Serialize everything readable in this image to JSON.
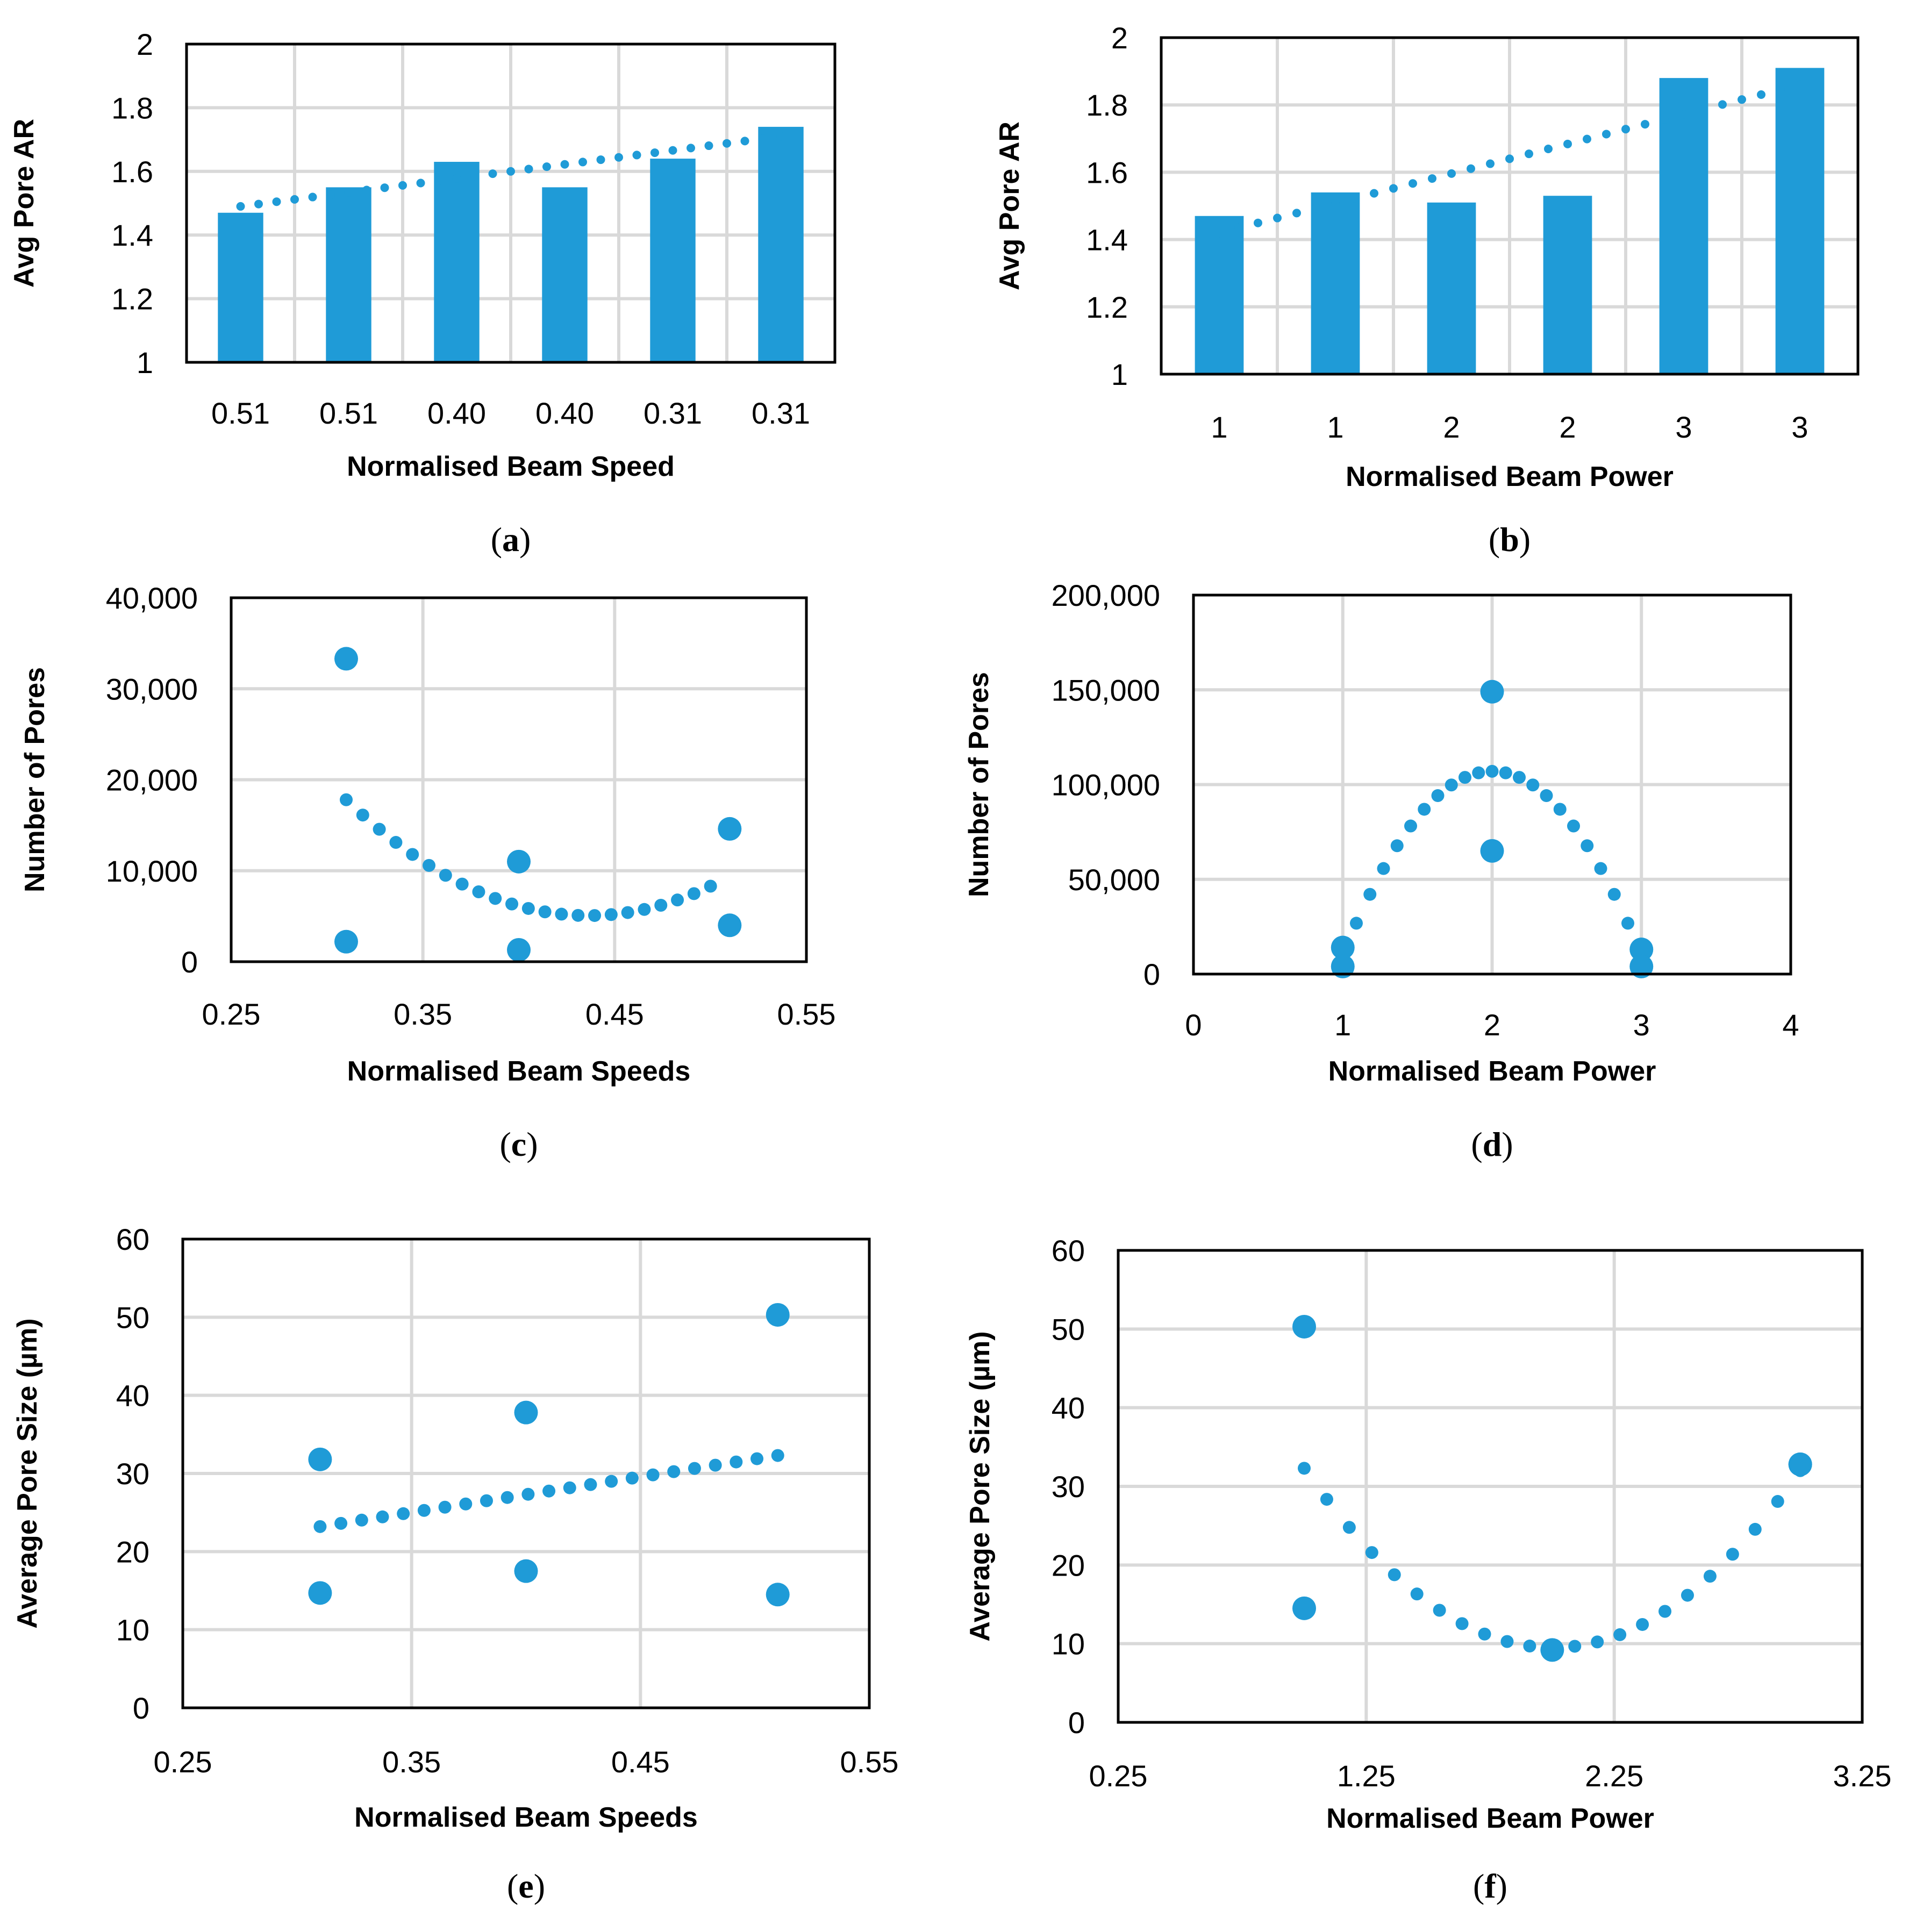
{
  "colors": {
    "series": "#1f9bd7",
    "grid": "#d9d9d9",
    "axis": "#000000"
  },
  "chart_data": [
    {
      "id": "a",
      "type": "bar",
      "panel_label": "a",
      "xlabel": "Normalised Beam Speed",
      "ylabel": "Avg Pore AR",
      "categories": [
        "0.51",
        "0.51",
        "0.40",
        "0.40",
        "0.31",
        "0.31"
      ],
      "values": [
        1.47,
        1.55,
        1.63,
        1.55,
        1.64,
        1.74
      ],
      "ylim": [
        1,
        2
      ],
      "yticks": [
        "1",
        "1.2",
        "1.4",
        "1.6",
        "1.8",
        "2"
      ],
      "trendline": {
        "type": "linear",
        "start": 1.49,
        "end": 1.71
      },
      "grid": true
    },
    {
      "id": "b",
      "type": "bar",
      "panel_label": "b",
      "xlabel": "Normalised Beam Power",
      "ylabel": "Avg Pore AR",
      "categories": [
        "1",
        "1",
        "2",
        "2",
        "3",
        "3"
      ],
      "values": [
        1.47,
        1.54,
        1.51,
        1.53,
        1.88,
        1.91
      ],
      "ylim": [
        1,
        2
      ],
      "yticks": [
        "1",
        "1.2",
        "1.4",
        "1.6",
        "1.8",
        "2"
      ],
      "trendline": {
        "type": "linear",
        "start": 1.42,
        "end": 1.86
      },
      "grid": true
    },
    {
      "id": "c",
      "type": "scatter",
      "panel_label": "c",
      "xlabel": "Normalised Beam Speeds",
      "ylabel": "Number of Pores",
      "xlim": [
        0.25,
        0.55
      ],
      "ylim": [
        0,
        40000
      ],
      "xticks": [
        "0.25",
        "0.35",
        "0.45",
        "0.55"
      ],
      "yticks": [
        "0",
        "10,000",
        "20,000",
        "30,000",
        "40,000"
      ],
      "x": [
        0.31,
        0.31,
        0.4,
        0.4,
        0.51,
        0.51
      ],
      "y": [
        33300,
        2200,
        11000,
        1300,
        14600,
        4000
      ],
      "trendline": {
        "type": "poly2",
        "x_range": [
          0.31,
          0.5
        ],
        "points": [
          [
            0.31,
            17800
          ],
          [
            0.43,
            5100
          ],
          [
            0.5,
            8300
          ]
        ]
      },
      "grid": true
    },
    {
      "id": "d",
      "type": "scatter",
      "panel_label": "d",
      "xlabel": "Normalised Beam Power",
      "ylabel": "Number of Pores",
      "xlim": [
        0,
        4
      ],
      "ylim": [
        0,
        200000
      ],
      "xticks": [
        "0",
        "1",
        "2",
        "3",
        "4"
      ],
      "yticks": [
        "0",
        "50,000",
        "100,000",
        "150,000",
        "200,000"
      ],
      "x": [
        1,
        1,
        2,
        2,
        3,
        3
      ],
      "y": [
        14000,
        4000,
        149000,
        65000,
        13000,
        4000
      ],
      "trendline": {
        "type": "poly2",
        "x_range": [
          1.0,
          3.0
        ],
        "points": [
          [
            1.0,
            10000
          ],
          [
            2.0,
            107000
          ],
          [
            3.0,
            10000
          ]
        ]
      },
      "grid": true
    },
    {
      "id": "e",
      "type": "scatter",
      "panel_label": "e",
      "xlabel": "Normalised Beam Speeds",
      "ylabel": "Average Pore Size (µm)",
      "xlim": [
        0.25,
        0.55
      ],
      "ylim": [
        0,
        60
      ],
      "xticks": [
        "0.25",
        "0.35",
        "0.45",
        "0.55"
      ],
      "yticks": [
        "0",
        "10",
        "20",
        "30",
        "40",
        "50",
        "60"
      ],
      "x": [
        0.31,
        0.31,
        0.4,
        0.4,
        0.51,
        0.51
      ],
      "y": [
        31.8,
        14.7,
        37.8,
        17.5,
        50.3,
        14.5
      ],
      "trendline": {
        "type": "linear",
        "x_range": [
          0.31,
          0.51
        ],
        "start": 23.2,
        "end": 32.3
      },
      "grid": true
    },
    {
      "id": "f",
      "type": "scatter",
      "panel_label": "f",
      "xlabel": "Normalised Beam Power",
      "ylabel": "Average Pore Size (µm)",
      "xlim": [
        0.25,
        3.25
      ],
      "ylim": [
        0,
        60
      ],
      "xticks": [
        "0.25",
        "1.25",
        "2.25",
        "3.25"
      ],
      "yticks": [
        "0",
        "10",
        "20",
        "30",
        "40",
        "50",
        "60"
      ],
      "x": [
        1,
        1,
        2,
        3,
        3
      ],
      "y": [
        50.3,
        14.5,
        9.2,
        32.8,
        32.8
      ],
      "trendline": {
        "type": "poly2",
        "x_range": [
          1.0,
          3.0
        ],
        "points": [
          [
            1.0,
            32.3
          ],
          [
            2.0,
            9.5
          ],
          [
            3.0,
            32.0
          ]
        ]
      },
      "grid": true
    }
  ]
}
